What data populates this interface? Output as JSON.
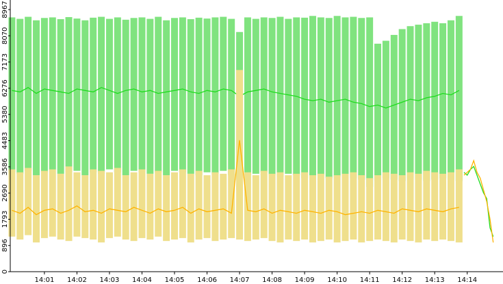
{
  "chart_data": {
    "type": "line",
    "xlim": [
      -0.05,
      15.1
    ],
    "xticks": [
      {
        "value": 1,
        "label": "14:01"
      },
      {
        "value": 2,
        "label": "14:02"
      },
      {
        "value": 3,
        "label": "14:03"
      },
      {
        "value": 4,
        "label": "14:04"
      },
      {
        "value": 5,
        "label": "14:05"
      },
      {
        "value": 6,
        "label": "14:06"
      },
      {
        "value": 7,
        "label": "14:07"
      },
      {
        "value": 8,
        "label": "14:08"
      },
      {
        "value": 9,
        "label": "14:09"
      },
      {
        "value": 10,
        "label": "14:10"
      },
      {
        "value": 11,
        "label": "14:11"
      },
      {
        "value": 12,
        "label": "14:12"
      },
      {
        "value": 13,
        "label": "14:13"
      },
      {
        "value": 14,
        "label": "14:14"
      }
    ],
    "ylim": [
      0,
      8967
    ],
    "yticks": [
      0,
      896,
      1793,
      2690,
      3586,
      4483,
      5380,
      6276,
      7173,
      8070,
      8967
    ],
    "x": [
      0,
      0.25,
      0.5,
      0.75,
      1,
      1.25,
      1.5,
      1.75,
      2,
      2.25,
      2.5,
      2.75,
      3,
      3.25,
      3.5,
      3.75,
      4,
      4.25,
      4.5,
      4.75,
      5,
      5.25,
      5.5,
      5.75,
      6,
      6.25,
      6.5,
      6.75,
      7,
      7.25,
      7.5,
      7.75,
      8,
      8.25,
      8.5,
      8.75,
      9,
      9.25,
      9.5,
      9.75,
      10,
      10.25,
      10.5,
      10.75,
      11,
      11.25,
      11.5,
      11.75,
      12,
      12.25,
      12.5,
      12.75,
      13,
      13.25,
      13.5,
      13.75
    ],
    "series": [
      {
        "type": "range",
        "color": "#80e37f",
        "high": [
          8700,
          8650,
          8720,
          8600,
          8680,
          8700,
          8640,
          8710,
          8660,
          8600,
          8690,
          8720,
          8650,
          8700,
          8620,
          8680,
          8700,
          8650,
          8720,
          8600,
          8680,
          8700,
          8640,
          8690,
          8660,
          8700,
          8720,
          8650,
          8200,
          8700,
          8650,
          8700,
          8680,
          8720,
          8650,
          8700,
          8690,
          8750,
          8700,
          8680,
          8750,
          8700,
          8720,
          8680,
          8700,
          7800,
          7900,
          8100,
          8300,
          8400,
          8450,
          8500,
          8550,
          8500,
          8600,
          8750
        ],
        "low": [
          3400,
          3350,
          3450,
          3300,
          3400,
          3500,
          3350,
          3400,
          3450,
          3300,
          3400,
          3350,
          3500,
          3400,
          3300,
          3450,
          3400,
          3350,
          3400,
          3300,
          3450,
          3400,
          3350,
          3300,
          3400,
          3350,
          3450,
          3300,
          2800,
          3300,
          3350,
          3400,
          3300,
          3250,
          3350,
          3300,
          3200,
          3250,
          3300,
          3200,
          3250,
          3300,
          3200,
          3150,
          2900,
          3100,
          3200,
          3150,
          3100,
          3200,
          3150,
          3100,
          3150,
          3200,
          3150,
          3100
        ]
      },
      {
        "type": "line",
        "color": "#1fdc1f",
        "values": [
          6200,
          6150,
          6300,
          6100,
          6250,
          6200,
          6150,
          6100,
          6250,
          6200,
          6150,
          6300,
          6200,
          6100,
          6200,
          6250,
          6150,
          6200,
          6100,
          6150,
          6200,
          6250,
          6150,
          6100,
          6200,
          6150,
          6250,
          6200,
          6000,
          6150,
          6200,
          6250,
          6150,
          6100,
          6050,
          6000,
          5900,
          5850,
          5900,
          5800,
          5850,
          5900,
          5800,
          5750,
          5650,
          5700,
          5600,
          5700,
          5800,
          5900,
          5850,
          5950,
          6000,
          6100,
          6050,
          6200
        ]
      },
      {
        "type": "range",
        "color": "#efdf8c",
        "high": [
          3500,
          3400,
          3550,
          3300,
          3450,
          3500,
          3350,
          3600,
          3400,
          3300,
          3500,
          3450,
          3400,
          3550,
          3300,
          3400,
          3500,
          3350,
          3450,
          3300,
          3400,
          3500,
          3350,
          3450,
          3300,
          3400,
          3350,
          3500,
          6900,
          3400,
          3300,
          3450,
          3350,
          3400,
          3300,
          3350,
          3400,
          3300,
          3350,
          3250,
          3300,
          3350,
          3400,
          3300,
          3200,
          3300,
          3400,
          3350,
          3300,
          3400,
          3350,
          3450,
          3400,
          3350,
          3400,
          3500
        ],
        "low": [
          1200,
          1100,
          1250,
          1000,
          1150,
          1200,
          1100,
          1050,
          1200,
          1150,
          1100,
          1000,
          1150,
          1200,
          1100,
          1050,
          1150,
          1100,
          1200,
          1050,
          1100,
          1150,
          1000,
          1100,
          1150,
          1050,
          1100,
          1150,
          1100,
          1050,
          1100,
          1150,
          1050,
          1000,
          1100,
          1050,
          1100,
          1000,
          1050,
          1100,
          1000,
          1050,
          1100,
          1000,
          1050,
          1100,
          1050,
          1000,
          1100,
          1050,
          1000,
          1100,
          1050,
          1100,
          1050,
          1000
        ]
      },
      {
        "type": "line",
        "color": "#ffb300",
        "values": [
          2100,
          2000,
          2200,
          1950,
          2100,
          2150,
          2000,
          2100,
          2250,
          2050,
          2100,
          2000,
          2150,
          2100,
          2050,
          2200,
          2100,
          2000,
          2150,
          2050,
          2100,
          2200,
          2000,
          2150,
          2050,
          2100,
          2150,
          2000,
          4500,
          2100,
          2050,
          2150,
          2000,
          2100,
          2050,
          2000,
          2100,
          2050,
          2000,
          2100,
          2050,
          1950,
          2000,
          2050,
          2000,
          2100,
          2050,
          2000,
          2150,
          2100,
          2050,
          2150,
          2100,
          2050,
          2150,
          2200
        ]
      },
      {
        "type": "line",
        "color": "#1fdc1f",
        "x": [
          13.9,
          14.0,
          14.1,
          14.2,
          14.3,
          14.4,
          14.5,
          14.6,
          14.7,
          14.8
        ],
        "values": [
          3400,
          3300,
          3500,
          3600,
          3300,
          3000,
          2700,
          2500,
          1500,
          1200
        ]
      },
      {
        "type": "line",
        "color": "#ffb300",
        "x": [
          13.9,
          14.0,
          14.1,
          14.2,
          14.3,
          14.4,
          14.5,
          14.6,
          14.7,
          14.8
        ],
        "values": [
          3300,
          3400,
          3500,
          3800,
          3400,
          3200,
          2800,
          2400,
          1800,
          1000
        ]
      }
    ]
  }
}
